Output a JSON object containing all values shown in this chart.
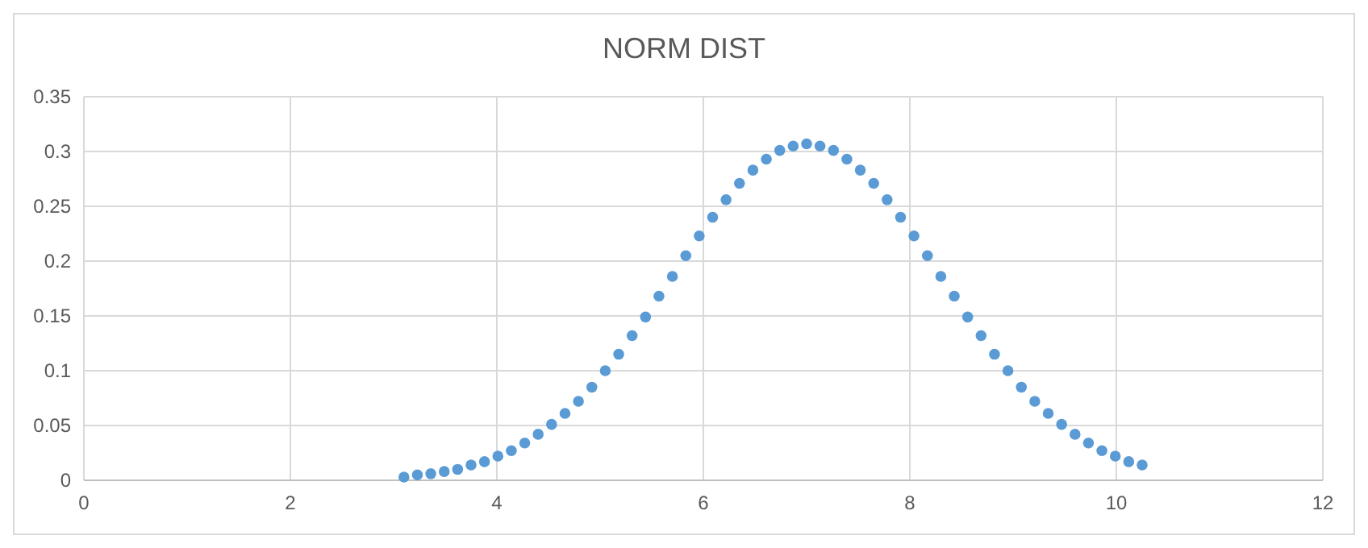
{
  "chart_data": {
    "type": "scatter",
    "title": "NORM DIST",
    "x": [
      3.1,
      3.23,
      3.36,
      3.49,
      3.62,
      3.75,
      3.88,
      4.01,
      4.14,
      4.27,
      4.4,
      4.53,
      4.66,
      4.79,
      4.92,
      5.05,
      5.18,
      5.31,
      5.44,
      5.57,
      5.7,
      5.83,
      5.96,
      6.09,
      6.22,
      6.35,
      6.48,
      6.61,
      6.74,
      6.87,
      7,
      7.13,
      7.26,
      7.39,
      7.52,
      7.65,
      7.78,
      7.91,
      8.04,
      8.17,
      8.3,
      8.43,
      8.56,
      8.69,
      8.82,
      8.95,
      9.08,
      9.21,
      9.34,
      9.47,
      9.6,
      9.73,
      9.86,
      9.99,
      10.12,
      10.25
    ],
    "series": [
      {
        "color": "#5b9bd5",
        "values": [
          0.003,
          0.005,
          0.006,
          0.008,
          0.01,
          0.014,
          0.017,
          0.022,
          0.027,
          0.034,
          0.042,
          0.051,
          0.061,
          0.072,
          0.085,
          0.1,
          0.115,
          0.132,
          0.149,
          0.168,
          0.186,
          0.205,
          0.223,
          0.24,
          0.256,
          0.271,
          0.283,
          0.293,
          0.301,
          0.305,
          0.307,
          0.305,
          0.301,
          0.293,
          0.283,
          0.271,
          0.256,
          0.24,
          0.223,
          0.205,
          0.186,
          0.168,
          0.149,
          0.132,
          0.115,
          0.1,
          0.085,
          0.072,
          0.061,
          0.051,
          0.042,
          0.034,
          0.027,
          0.022,
          0.017,
          0.014
        ]
      }
    ],
    "xlim": [
      0,
      12
    ],
    "xticks": [
      0,
      2,
      4,
      6,
      8,
      10,
      12
    ],
    "ylim": [
      0,
      0.35
    ],
    "yticks": [
      0,
      0.05,
      0.1,
      0.15,
      0.2,
      0.25,
      0.3,
      0.35
    ],
    "grid": true,
    "marker": "circle"
  }
}
